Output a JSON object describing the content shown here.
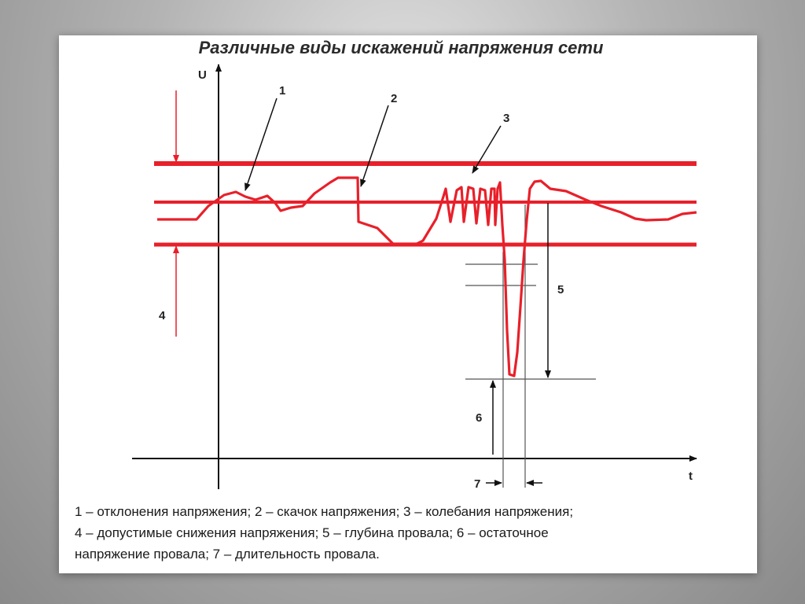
{
  "title": "Различные виды искажений напряжения сети",
  "axes": {
    "y_label": "U",
    "x_label": "t"
  },
  "markers": {
    "deviation": "1",
    "surge": "2",
    "fluctuation": "3",
    "allowed_drop": "4",
    "dip_depth": "5",
    "residual_voltage": "6",
    "dip_duration": "7"
  },
  "caption": {
    "line1": "1 – отклонения напряжения; 2 – скачок напряжения; 3 – колебания напряжения;",
    "line2": "4 – допустимые снижения напряжения; 5 – глубина провала; 6 – остаточное",
    "line3": "напряжение провала; 7 – длительность провала."
  },
  "colors": {
    "signal": "#e8202a",
    "axes": "#111111",
    "guides": "#555555"
  }
}
